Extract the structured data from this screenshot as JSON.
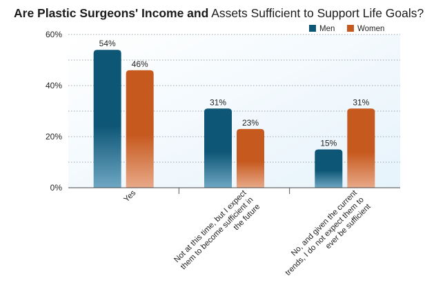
{
  "chart_data": {
    "type": "bar",
    "title_bold": "Are Plastic Surgeons' Income and",
    "title_rest": " Assets Sufficient to Support Life Goals?",
    "categories": [
      [
        "Yes"
      ],
      [
        "Not at this time, but I expect",
        "them to become sufficient in",
        "the future"
      ],
      [
        "No, and given the current",
        "trends, I do not expect them to",
        "ever be sufficient"
      ]
    ],
    "series": [
      {
        "name": "Men",
        "values": [
          54,
          31,
          15
        ],
        "labels": [
          "54%",
          "31%",
          "15%"
        ],
        "color": "#0e5676"
      },
      {
        "name": "Women",
        "values": [
          46,
          23,
          31
        ],
        "labels": [
          "46%",
          "23%",
          "31%"
        ],
        "color": "#c6591e"
      }
    ],
    "ylim": [
      0,
      60
    ],
    "yticks": [
      0,
      20,
      40,
      60
    ],
    "ytick_labels": [
      "0%",
      "20%",
      "40%",
      "60%"
    ],
    "grid": true,
    "legend_position": "top-right",
    "xlabel": "",
    "ylabel": ""
  }
}
